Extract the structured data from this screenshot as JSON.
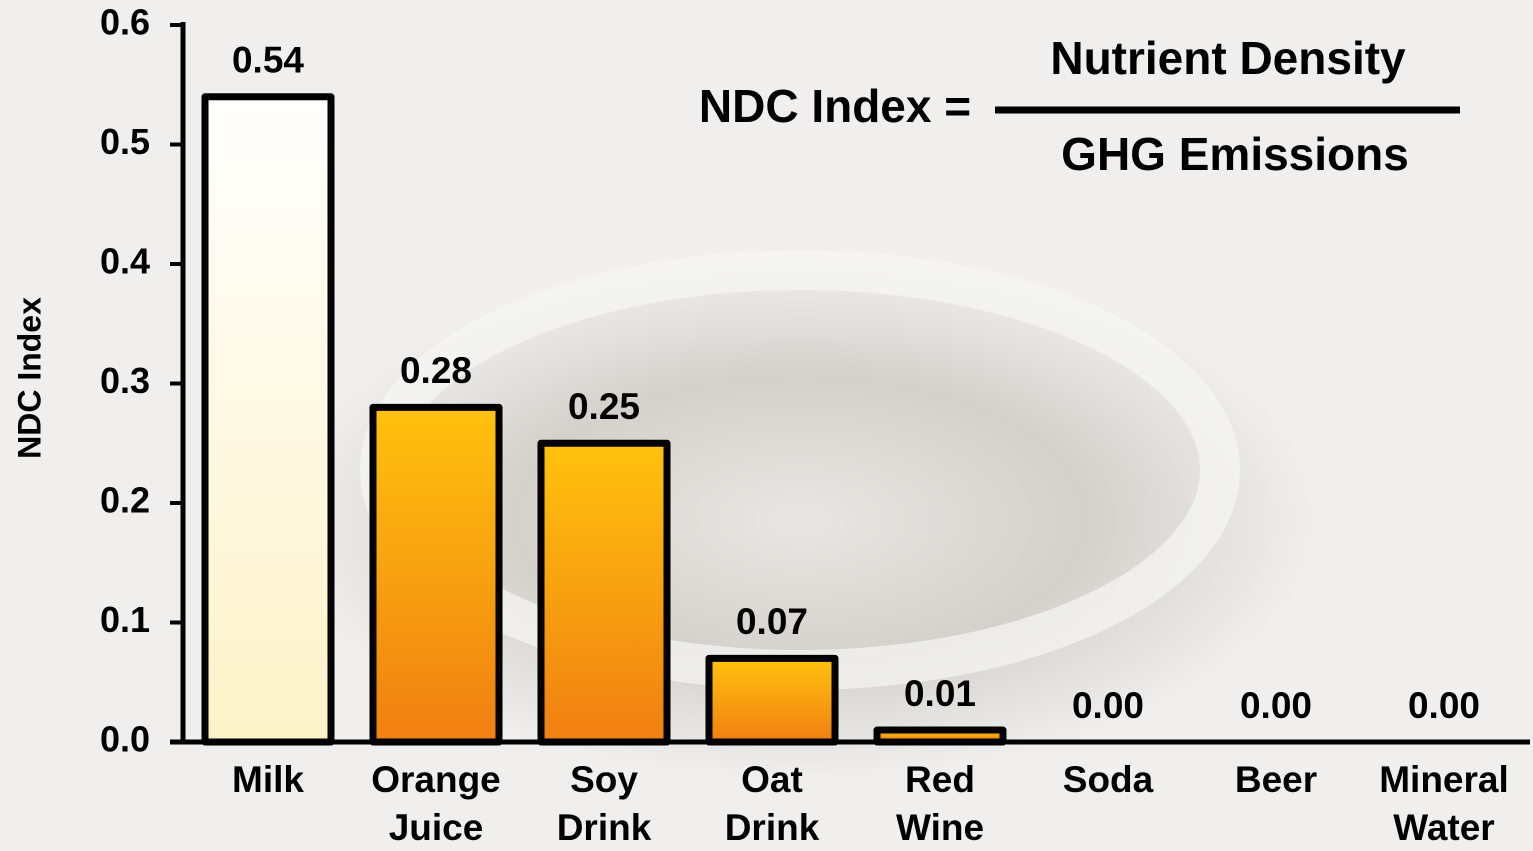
{
  "chart_data": {
    "type": "bar",
    "y_label": "NDC Index",
    "formula": {
      "lhs": "NDC Index =",
      "numerator": "Nutrient Density",
      "denominator": "GHG Emissions"
    },
    "categories": [
      "Milk",
      "Orange Juice",
      "Soy Drink",
      "Oat Drink",
      "Red Wine",
      "Soda",
      "Beer",
      "Mineral Water"
    ],
    "values": [
      0.54,
      0.28,
      0.25,
      0.07,
      0.01,
      0,
      0,
      0
    ],
    "value_labels": [
      "0.54",
      "0.28",
      "0.25",
      "0.07",
      "0.01",
      "0.00",
      "0.00",
      "0.00"
    ],
    "gradients": [
      [
        "#ffffff",
        "#fdf3c8"
      ],
      [
        "#ffc20e",
        "#f07f12"
      ],
      [
        "#ffc20e",
        "#f07f12"
      ],
      [
        "#ffc20e",
        "#f07f12"
      ],
      [
        "#ffc20e",
        "#f07f12"
      ],
      [
        "#ffc20e",
        "#f07f12"
      ],
      [
        "#ffc20e",
        "#f07f12"
      ],
      [
        "#ffc20e",
        "#f07f12"
      ]
    ],
    "ylim": [
      0,
      0.6
    ],
    "yticks": [
      {
        "value": 0,
        "label": "0.0"
      },
      0.1,
      0.2,
      0.3,
      0.4,
      0.5,
      0.6
    ],
    "grid": false
  }
}
